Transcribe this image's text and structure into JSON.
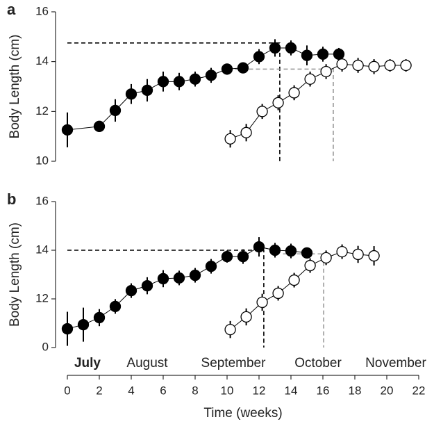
{
  "chart_data": [
    {
      "type": "line",
      "panel_label": "a",
      "ylabel": "Body Length (cm)",
      "xlim": [
        0,
        22
      ],
      "ylim": [
        10,
        16
      ],
      "yticks": [
        10,
        12,
        14,
        16
      ],
      "series": [
        {
          "color": "#000000",
          "x": [
            0,
            2,
            3,
            4,
            5,
            6,
            7,
            8,
            9,
            10,
            11,
            12,
            13,
            14,
            15,
            16,
            17
          ],
          "values": [
            11.26,
            11.4,
            12.04,
            12.7,
            12.85,
            13.2,
            13.2,
            13.3,
            13.45,
            13.7,
            13.75,
            14.2,
            14.55,
            14.55,
            14.25,
            14.3,
            14.3
          ],
          "errors": [
            0.7,
            0.2,
            0.45,
            0.4,
            0.45,
            0.4,
            0.35,
            0.3,
            0.3,
            0.2,
            0.2,
            0.3,
            0.35,
            0.3,
            0.4,
            0.3,
            0.25
          ]
        },
        {
          "color": "#ffffff",
          "x": [
            10.2,
            11.2,
            12.2,
            13.2,
            14.2,
            15.2,
            16.2,
            17.2,
            18.2,
            19.2,
            20.2,
            21.2
          ],
          "values": [
            10.9,
            11.15,
            12.0,
            12.35,
            12.75,
            13.3,
            13.6,
            13.9,
            13.85,
            13.8,
            13.85,
            13.85
          ],
          "errors": [
            0.35,
            0.35,
            0.3,
            0.3,
            0.3,
            0.3,
            0.3,
            0.3,
            0.3,
            0.3,
            0.25,
            0.25
          ]
        }
      ],
      "guides": [
        {
          "color": "#000000",
          "x": [
            0,
            13.3,
            13.3
          ],
          "y": [
            14.75,
            14.75,
            10
          ]
        },
        {
          "color": "#999999",
          "x": [
            10.5,
            16.65,
            16.65
          ],
          "y": [
            13.7,
            13.7,
            10
          ]
        }
      ]
    },
    {
      "type": "line",
      "panel_label": "b",
      "ylabel": "Body Length (cm)",
      "xlabel": "Time (weeks)",
      "months": [
        "July",
        "August",
        "September",
        "October",
        "November"
      ],
      "xlim": [
        0,
        22
      ],
      "xticks": [
        0,
        2,
        4,
        6,
        8,
        10,
        12,
        14,
        16,
        18,
        20,
        22
      ],
      "ylim": [
        10,
        16
      ],
      "yticks": [
        {
          "value": 10,
          "label": "0"
        },
        12,
        14,
        16
      ],
      "series": [
        {
          "color": "#000000",
          "x": [
            0,
            1,
            2,
            3,
            4,
            5,
            6,
            7,
            8,
            9,
            10,
            11,
            12,
            13,
            14,
            15
          ],
          "values": [
            10.77,
            10.94,
            11.23,
            11.69,
            12.34,
            12.54,
            12.83,
            12.86,
            12.97,
            13.34,
            13.74,
            13.74,
            14.14,
            14.0,
            13.97,
            13.89
          ],
          "errors": [
            0.7,
            0.7,
            0.35,
            0.3,
            0.3,
            0.35,
            0.35,
            0.3,
            0.3,
            0.3,
            0.25,
            0.3,
            0.4,
            0.3,
            0.3,
            0.2
          ]
        },
        {
          "color": "#ffffff",
          "x": [
            10.2,
            11.2,
            12.2,
            13.2,
            14.2,
            15.2,
            16.2,
            17.2,
            18.2,
            19.2
          ],
          "values": [
            10.74,
            11.26,
            11.86,
            12.23,
            12.77,
            13.37,
            13.69,
            13.94,
            13.83,
            13.77
          ],
          "errors": [
            0.35,
            0.35,
            0.35,
            0.3,
            0.3,
            0.3,
            0.3,
            0.3,
            0.35,
            0.4
          ]
        }
      ],
      "guides": [
        {
          "color": "#000000",
          "x": [
            0,
            12.3,
            12.3
          ],
          "y": [
            14.0,
            14.0,
            10
          ]
        },
        {
          "color": "#999999",
          "x": [
            13.5,
            16.05,
            16.05
          ],
          "y": [
            13.85,
            13.85,
            10
          ]
        }
      ]
    }
  ]
}
